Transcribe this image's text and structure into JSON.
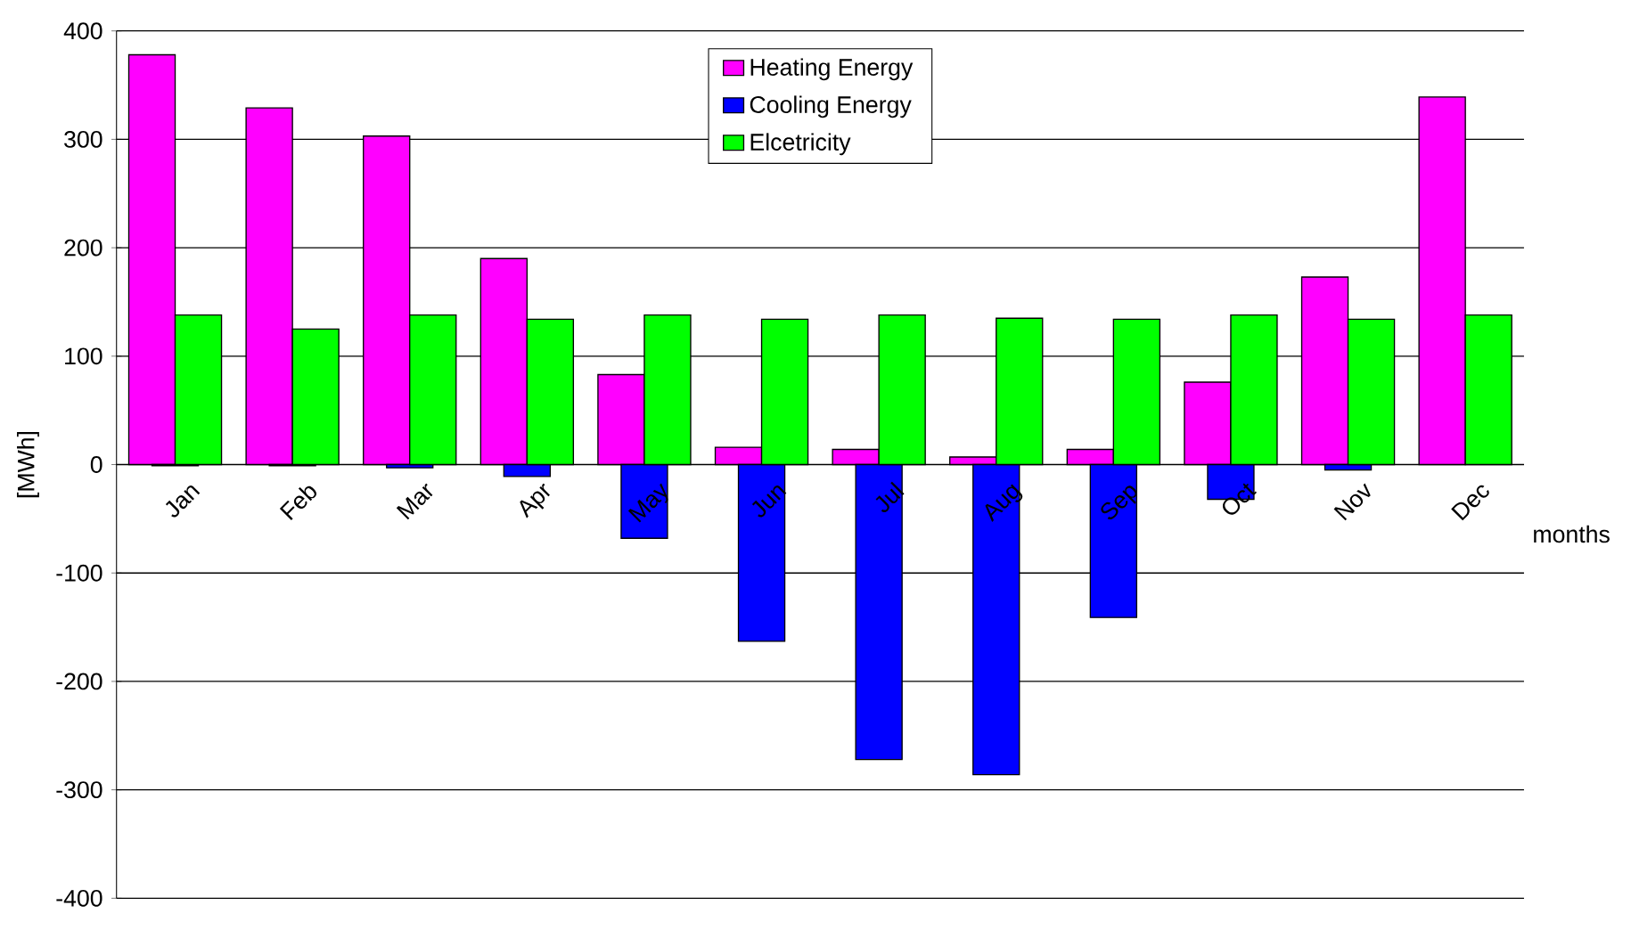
{
  "chart_data": {
    "type": "bar",
    "ylabel": "[MWh]",
    "xlabel": "months",
    "categories": [
      "Jan",
      "Feb",
      "Mar",
      "Apr",
      "May",
      "Jun",
      "Jul",
      "Aug",
      "Sep",
      "Oct",
      "Nov",
      "Dec"
    ],
    "series": [
      {
        "name": "Heating Energy",
        "color": "#ff00ff",
        "values": [
          378,
          329,
          303,
          190,
          83,
          16,
          14,
          7,
          14,
          76,
          173,
          339
        ]
      },
      {
        "name": "Cooling Energy",
        "color": "#0000ff",
        "values": [
          -1,
          -1,
          -3,
          -11,
          -68,
          -163,
          -272,
          -286,
          -141,
          -32,
          -5,
          null
        ]
      },
      {
        "name": "Elcetricity",
        "color": "#00ff00",
        "values": [
          138,
          125,
          138,
          134,
          138,
          134,
          138,
          135,
          134,
          138,
          134,
          138
        ]
      }
    ],
    "ylim": [
      -400,
      400
    ],
    "yticks": [
      -400,
      -300,
      -200,
      -100,
      0,
      100,
      200,
      300,
      400
    ],
    "grid": "y",
    "legend": "top"
  }
}
